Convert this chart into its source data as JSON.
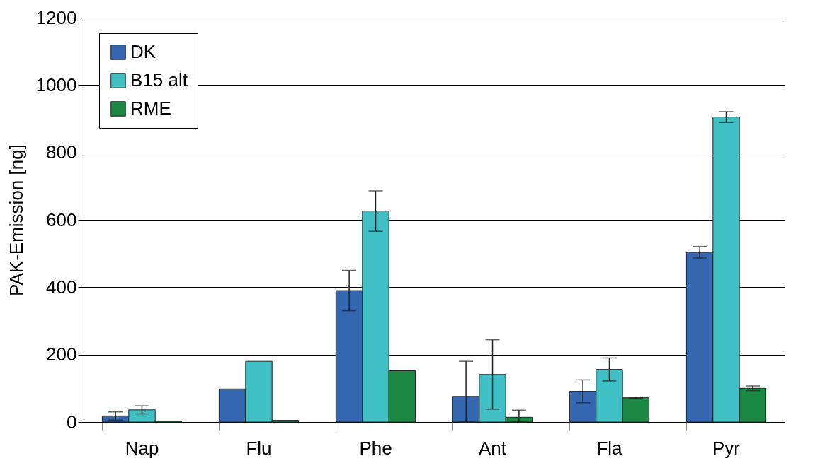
{
  "chart_data": {
    "type": "bar",
    "ylabel": "PAK-Emission [ng]",
    "categories": [
      "Nap",
      "Flu",
      "Phe",
      "Ant",
      "Fla",
      "Pyr"
    ],
    "series": [
      {
        "name": "DK",
        "color": "#3566b0",
        "values": [
          18,
          98,
          390,
          76,
          91,
          504
        ],
        "errors": [
          12,
          null,
          60,
          [
            0,
            180
          ],
          34,
          17
        ]
      },
      {
        "name": "B15 alt",
        "color": "#40c0c4",
        "values": [
          36,
          180,
          626,
          141,
          156,
          905
        ],
        "errors": [
          12,
          null,
          60,
          103,
          34,
          16
        ]
      },
      {
        "name": "RME",
        "color": "#1b8844",
        "values": [
          3,
          5,
          152,
          14,
          72,
          100
        ],
        "errors": [
          null,
          null,
          null,
          [
            0,
            35
          ],
          2,
          7
        ]
      }
    ],
    "ylim": [
      0,
      1200
    ],
    "yticks": [
      0,
      200,
      400,
      600,
      800,
      1000,
      1200
    ],
    "grid": "y",
    "legend": "top left"
  }
}
